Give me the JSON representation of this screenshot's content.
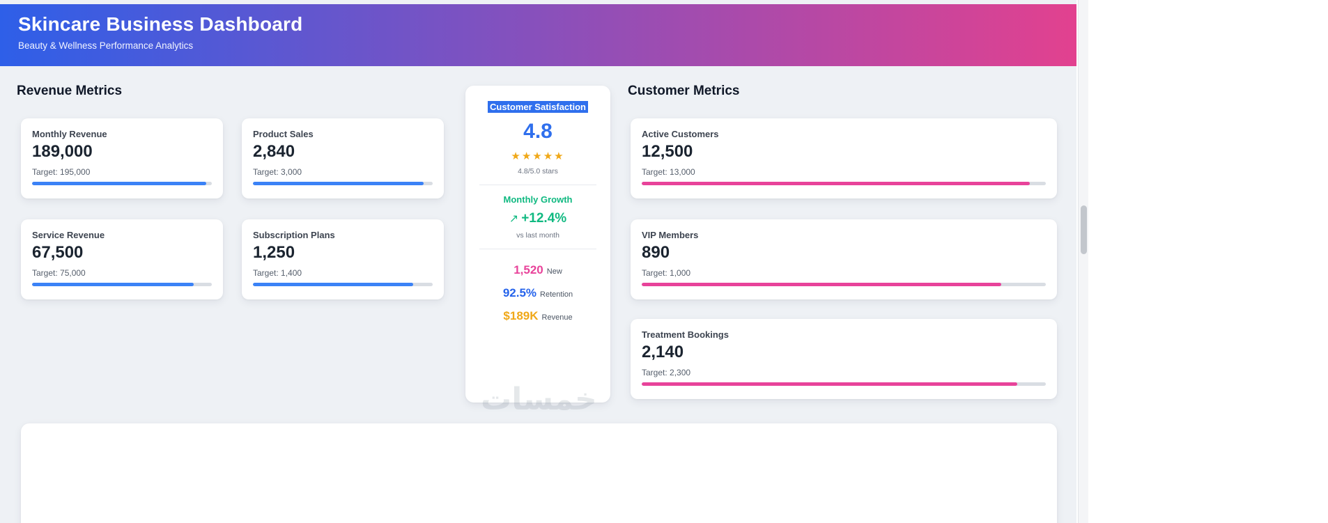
{
  "colors": {
    "header_gradient_start": "#2e5fe8",
    "header_gradient_end": "#e2418f",
    "accent_blue": "#3b82f6",
    "accent_pink": "#e8439a",
    "accent_green": "#10b981",
    "accent_amber": "#f0a818",
    "score_blue": "#2f6fed",
    "retention_blue": "#2563eb"
  },
  "header": {
    "title": "Skincare Business Dashboard",
    "subtitle": "Beauty & Wellness Performance Analytics"
  },
  "revenue_section": {
    "heading": "Revenue Metrics",
    "cards": [
      {
        "label": "Monthly Revenue",
        "value": "189,000",
        "target": "Target: 195,000",
        "progress": 97
      },
      {
        "label": "Product Sales",
        "value": "2,840",
        "target": "Target: 3,000",
        "progress": 95
      },
      {
        "label": "Service Revenue",
        "value": "67,500",
        "target": "Target: 75,000",
        "progress": 90
      },
      {
        "label": "Subscription Plans",
        "value": "1,250",
        "target": "Target: 1,400",
        "progress": 89
      }
    ]
  },
  "satisfaction": {
    "title": "Customer Satisfaction",
    "score": "4.8",
    "stars": "★★★★★",
    "stars_caption": "4.8/5.0 stars",
    "growth_heading": "Monthly Growth",
    "growth_arrow": "↗",
    "growth_value": "+12.4%",
    "growth_caption": "vs last month",
    "stats": [
      {
        "value": "1,520",
        "label": "New"
      },
      {
        "value": "92.5%",
        "label": "Retention"
      },
      {
        "value": "$189K",
        "label": "Revenue"
      }
    ]
  },
  "customer_section": {
    "heading": "Customer Metrics",
    "cards": [
      {
        "label": "Active Customers",
        "value": "12,500",
        "target": "Target: 13,000",
        "progress": 96
      },
      {
        "label": "VIP Members",
        "value": "890",
        "target": "Target: 1,000",
        "progress": 89
      },
      {
        "label": "Treatment Bookings",
        "value": "2,140",
        "target": "Target: 2,300",
        "progress": 93
      }
    ]
  },
  "watermark": "خمسات"
}
